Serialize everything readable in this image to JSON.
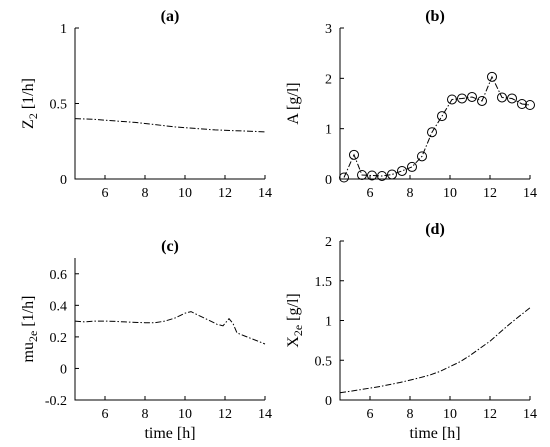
{
  "chart_data": [
    {
      "id": "a",
      "type": "line",
      "title": "(a)",
      "ylabel_main": "Z",
      "ylabel_sub": "2",
      "ylabel_unit": " [1/h]",
      "xlabel": "",
      "xlim": [
        4.5,
        14
      ],
      "ylim": [
        0,
        1
      ],
      "xticks": [
        6,
        8,
        10,
        12,
        14
      ],
      "yticks": [
        0,
        0.5,
        1
      ],
      "ytick_labels": [
        "0",
        "0.5",
        "1"
      ],
      "markers": false,
      "series": [
        {
          "x": [
            4.5,
            5.5,
            6.5,
            7.5,
            8.5,
            9.5,
            10.5,
            11.5,
            12.5,
            13.5,
            14
          ],
          "y": [
            0.4,
            0.395,
            0.385,
            0.375,
            0.36,
            0.345,
            0.335,
            0.325,
            0.32,
            0.315,
            0.312
          ]
        }
      ]
    },
    {
      "id": "b",
      "type": "line",
      "title": "(b)",
      "ylabel_main": "A",
      "ylabel_sub": "",
      "ylabel_unit": " [g/l]",
      "xlabel": "",
      "xlim": [
        4.5,
        14
      ],
      "ylim": [
        0,
        3
      ],
      "xticks": [
        6,
        8,
        10,
        12,
        14
      ],
      "yticks": [
        0,
        1,
        2,
        3
      ],
      "ytick_labels": [
        "0",
        "1",
        "2",
        "3"
      ],
      "markers": true,
      "series": [
        {
          "x": [
            4.7,
            5.2,
            5.6,
            6.1,
            6.6,
            7.1,
            7.6,
            8.1,
            8.6,
            9.1,
            9.6,
            10.1,
            10.6,
            11.1,
            11.6,
            12.1,
            12.6,
            13.1,
            13.6,
            14.0
          ],
          "y": [
            0.03,
            0.48,
            0.08,
            0.07,
            0.06,
            0.09,
            0.16,
            0.24,
            0.45,
            0.93,
            1.25,
            1.58,
            1.6,
            1.63,
            1.55,
            2.03,
            1.62,
            1.6,
            1.49,
            1.47
          ]
        }
      ]
    },
    {
      "id": "c",
      "type": "line",
      "title": "(c)",
      "ylabel_main": "mu",
      "ylabel_sub": "2e",
      "ylabel_unit": " [1/h]",
      "xlabel": "time [h]",
      "xlim": [
        4.5,
        14
      ],
      "ylim": [
        -0.2,
        0.7
      ],
      "xticks": [
        6,
        8,
        10,
        12,
        14
      ],
      "yticks": [
        -0.2,
        0,
        0.2,
        0.4,
        0.6
      ],
      "ytick_labels": [
        "-0.2",
        "0",
        "0.2",
        "0.4",
        "0.6"
      ],
      "markers": false,
      "series": [
        {
          "x": [
            4.5,
            5,
            5.5,
            6,
            6.5,
            7,
            7.5,
            8,
            8.5,
            9,
            9.5,
            10,
            10.3,
            10.7,
            11.2,
            11.6,
            11.9,
            12.2,
            12.4,
            12.6,
            13,
            13.5,
            14
          ],
          "y": [
            0.3,
            0.295,
            0.3,
            0.3,
            0.298,
            0.295,
            0.292,
            0.29,
            0.29,
            0.3,
            0.32,
            0.35,
            0.36,
            0.335,
            0.305,
            0.28,
            0.27,
            0.315,
            0.285,
            0.225,
            0.205,
            0.18,
            0.155
          ]
        }
      ]
    },
    {
      "id": "d",
      "type": "line",
      "title": "(d)",
      "ylabel_main": "X",
      "ylabel_sub": "2e",
      "ylabel_unit": " [g/l]",
      "xlabel": "time [h]",
      "xlim": [
        4.5,
        14
      ],
      "ylim": [
        0,
        2
      ],
      "xticks": [
        6,
        8,
        10,
        12,
        14
      ],
      "yticks": [
        0,
        0.5,
        1,
        1.5,
        2
      ],
      "ytick_labels": [
        "0",
        "0.5",
        "1",
        "1.5",
        "2"
      ],
      "markers": false,
      "series": [
        {
          "x": [
            4.5,
            5,
            5.5,
            6,
            6.5,
            7,
            7.5,
            8,
            8.5,
            9,
            9.5,
            10,
            10.5,
            11,
            11.5,
            12,
            12.5,
            13,
            13.5,
            14
          ],
          "y": [
            0.09,
            0.11,
            0.13,
            0.15,
            0.17,
            0.195,
            0.22,
            0.25,
            0.28,
            0.315,
            0.36,
            0.42,
            0.48,
            0.56,
            0.65,
            0.74,
            0.85,
            0.96,
            1.06,
            1.16
          ]
        }
      ]
    }
  ]
}
